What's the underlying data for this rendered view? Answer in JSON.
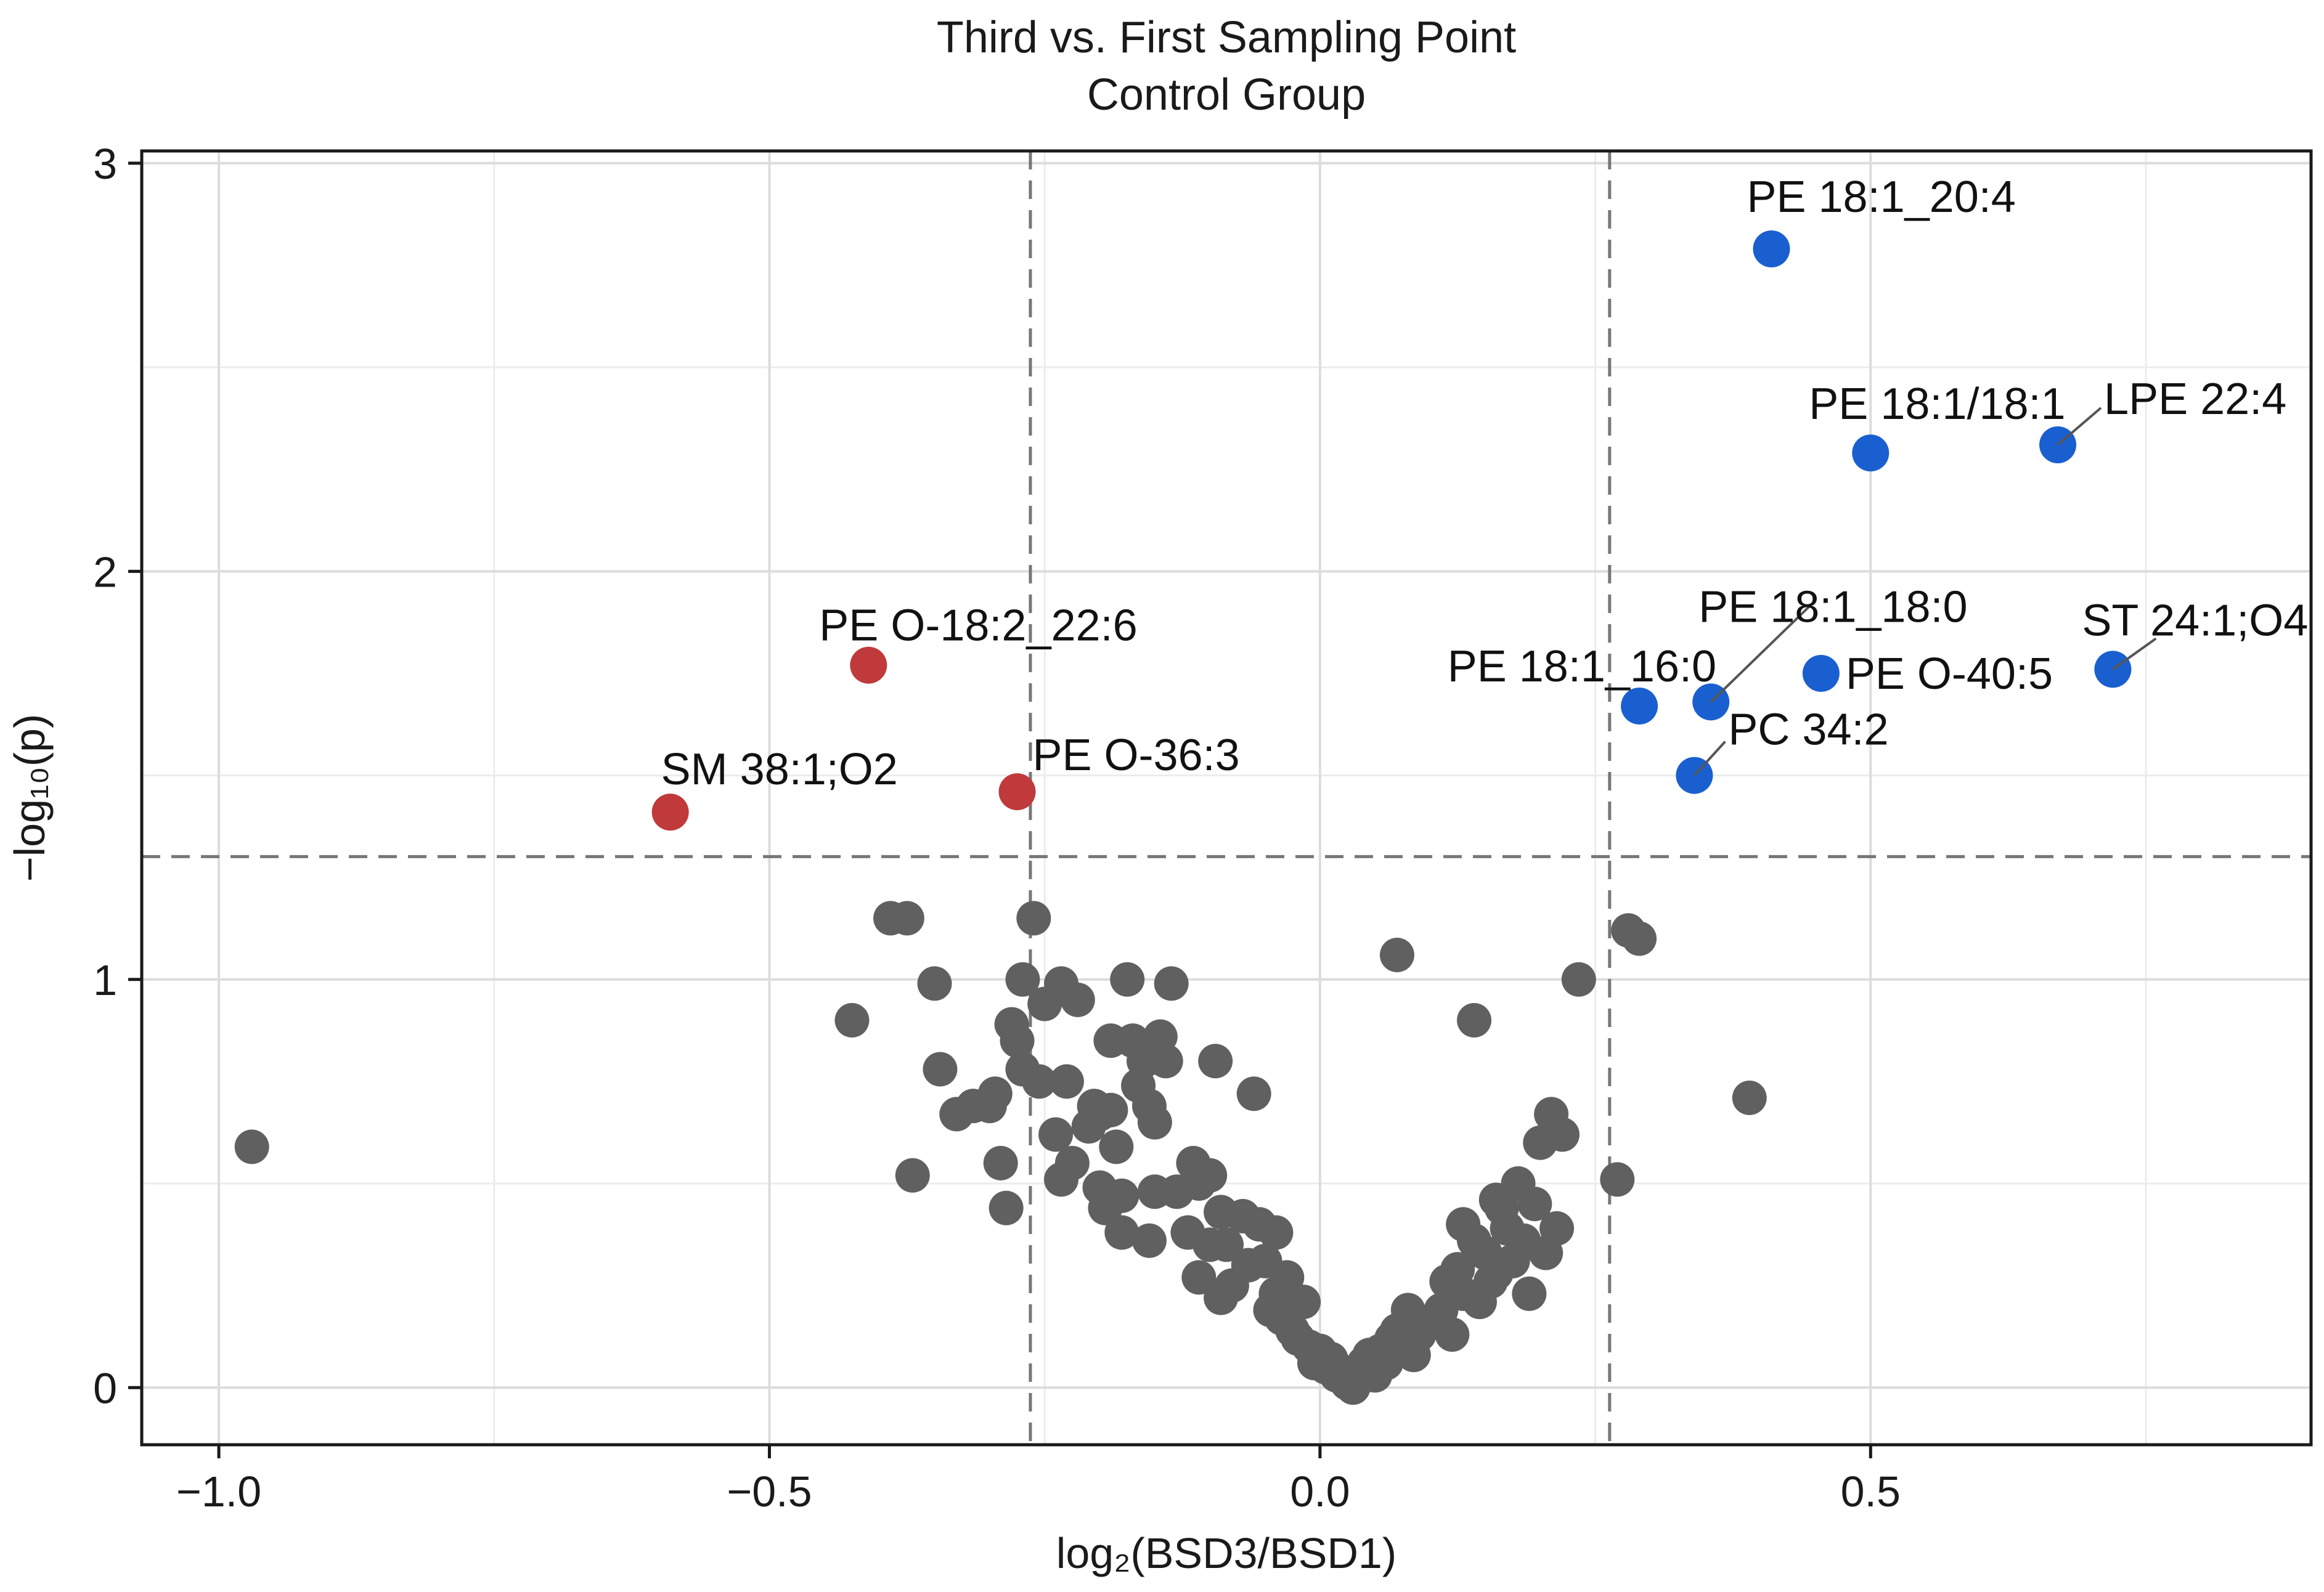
{
  "chart_data": {
    "type": "scatter",
    "title": "Third vs. First Sampling Point",
    "subtitle": "Control Group",
    "xlabel": "log₂(BSD3/BSD1)",
    "ylabel": "−log₁₀(p)",
    "xlim": [
      -1.07,
      0.9
    ],
    "ylim": [
      -0.14,
      3.03
    ],
    "xticks": [
      -1.0,
      -0.5,
      0.0,
      0.5
    ],
    "xtick_labels": [
      "−1.0",
      "−0.5",
      "0.0",
      "0.5"
    ],
    "yticks": [
      0,
      1,
      2,
      3
    ],
    "ytick_labels": [
      "0",
      "1",
      "2",
      "3"
    ],
    "grid": true,
    "thresholds": {
      "x": [
        -0.263,
        0.263
      ],
      "y": 1.301
    },
    "colors": {
      "down": "#c0393b",
      "up": "#1a5fd0",
      "ns": "#606060"
    },
    "labeled_points": [
      {
        "name": "PE 18:1_20:4",
        "x": 0.41,
        "y": 2.79,
        "group": "up"
      },
      {
        "name": "PE 18:1/18:1",
        "x": 0.5,
        "y": 2.29,
        "group": "up"
      },
      {
        "name": "LPE 22:4",
        "x": 0.67,
        "y": 2.31,
        "group": "up"
      },
      {
        "name": "ST 24:1;O4",
        "x": 0.72,
        "y": 1.76,
        "group": "up"
      },
      {
        "name": "PE O-40:5",
        "x": 0.455,
        "y": 1.75,
        "group": "up"
      },
      {
        "name": "PE 18:1_18:0",
        "x": 0.355,
        "y": 1.68,
        "group": "up"
      },
      {
        "name": "PE 18:1_16:0",
        "x": 0.29,
        "y": 1.67,
        "group": "up"
      },
      {
        "name": "PC 34:2",
        "x": 0.34,
        "y": 1.5,
        "group": "up"
      },
      {
        "name": "PE O-18:2_22:6",
        "x": -0.41,
        "y": 1.77,
        "group": "down"
      },
      {
        "name": "PE O-36:3",
        "x": -0.275,
        "y": 1.46,
        "group": "down"
      },
      {
        "name": "SM 38:1;O2",
        "x": -0.59,
        "y": 1.41,
        "group": "down"
      }
    ],
    "ns_points": [
      [
        -0.97,
        0.59
      ],
      [
        -0.39,
        1.15
      ],
      [
        -0.375,
        1.15
      ],
      [
        -0.425,
        0.9
      ],
      [
        -0.37,
        0.52
      ],
      [
        -0.35,
        0.99
      ],
      [
        -0.345,
        0.78
      ],
      [
        -0.33,
        0.67
      ],
      [
        -0.315,
        0.69
      ],
      [
        -0.3,
        0.69
      ],
      [
        -0.295,
        0.72
      ],
      [
        -0.29,
        0.55
      ],
      [
        -0.285,
        0.44
      ],
      [
        -0.28,
        0.89
      ],
      [
        -0.27,
        1.0
      ],
      [
        -0.26,
        1.15
      ],
      [
        -0.275,
        0.85
      ],
      [
        -0.27,
        0.78
      ],
      [
        -0.255,
        0.75
      ],
      [
        -0.25,
        0.94
      ],
      [
        -0.24,
        0.62
      ],
      [
        -0.235,
        0.99
      ],
      [
        -0.23,
        0.75
      ],
      [
        -0.235,
        0.51
      ],
      [
        -0.225,
        0.55
      ],
      [
        -0.22,
        0.95
      ],
      [
        -0.21,
        0.64
      ],
      [
        -0.205,
        0.69
      ],
      [
        -0.2,
        0.67
      ],
      [
        -0.2,
        0.49
      ],
      [
        -0.195,
        0.44
      ],
      [
        -0.19,
        0.85
      ],
      [
        -0.19,
        0.68
      ],
      [
        -0.185,
        0.59
      ],
      [
        -0.18,
        0.47
      ],
      [
        -0.18,
        0.38
      ],
      [
        -0.175,
        1.0
      ],
      [
        -0.17,
        0.85
      ],
      [
        -0.165,
        0.74
      ],
      [
        -0.16,
        0.8
      ],
      [
        -0.155,
        0.69
      ],
      [
        -0.15,
        0.48
      ],
      [
        -0.155,
        0.36
      ],
      [
        -0.15,
        0.65
      ],
      [
        -0.145,
        0.86
      ],
      [
        -0.14,
        0.8
      ],
      [
        -0.135,
        0.99
      ],
      [
        -0.13,
        0.48
      ],
      [
        -0.12,
        0.38
      ],
      [
        -0.115,
        0.55
      ],
      [
        -0.11,
        0.5
      ],
      [
        -0.11,
        0.27
      ],
      [
        -0.1,
        0.52
      ],
      [
        -0.1,
        0.35
      ],
      [
        -0.095,
        0.8
      ],
      [
        -0.09,
        0.43
      ],
      [
        -0.09,
        0.22
      ],
      [
        -0.085,
        0.35
      ],
      [
        -0.08,
        0.25
      ],
      [
        -0.07,
        0.42
      ],
      [
        -0.065,
        0.3
      ],
      [
        -0.06,
        0.72
      ],
      [
        -0.055,
        0.4
      ],
      [
        -0.05,
        0.31
      ],
      [
        -0.045,
        0.19
      ],
      [
        -0.04,
        0.38
      ],
      [
        -0.04,
        0.23
      ],
      [
        -0.035,
        0.17
      ],
      [
        -0.03,
        0.27
      ],
      [
        -0.025,
        0.14
      ],
      [
        -0.02,
        0.12
      ],
      [
        -0.015,
        0.21
      ],
      [
        -0.01,
        0.1
      ],
      [
        -0.005,
        0.06
      ],
      [
        0.0,
        0.09
      ],
      [
        0.005,
        0.05
      ],
      [
        0.01,
        0.07
      ],
      [
        0.015,
        0.03
      ],
      [
        0.02,
        0.04
      ],
      [
        0.025,
        0.01
      ],
      [
        0.03,
        0.0
      ],
      [
        0.035,
        0.02
      ],
      [
        0.04,
        0.06
      ],
      [
        0.045,
        0.08
      ],
      [
        0.05,
        0.03
      ],
      [
        0.055,
        0.09
      ],
      [
        0.06,
        0.06
      ],
      [
        0.065,
        0.12
      ],
      [
        0.07,
        0.14
      ],
      [
        0.075,
        0.11
      ],
      [
        0.08,
        0.19
      ],
      [
        0.085,
        0.08
      ],
      [
        0.09,
        0.13
      ],
      [
        0.1,
        0.16
      ],
      [
        0.11,
        0.19
      ],
      [
        0.115,
        0.26
      ],
      [
        0.12,
        0.13
      ],
      [
        0.125,
        0.29
      ],
      [
        0.13,
        0.4
      ],
      [
        0.13,
        0.23
      ],
      [
        0.14,
        0.36
      ],
      [
        0.145,
        0.21
      ],
      [
        0.15,
        0.33
      ],
      [
        0.155,
        0.26
      ],
      [
        0.16,
        0.46
      ],
      [
        0.16,
        0.28
      ],
      [
        0.165,
        0.44
      ],
      [
        0.17,
        0.39
      ],
      [
        0.175,
        0.31
      ],
      [
        0.18,
        0.5
      ],
      [
        0.185,
        0.36
      ],
      [
        0.19,
        0.23
      ],
      [
        0.195,
        0.45
      ],
      [
        0.2,
        0.6
      ],
      [
        0.205,
        0.33
      ],
      [
        0.21,
        0.67
      ],
      [
        0.215,
        0.39
      ],
      [
        0.22,
        0.62
      ],
      [
        0.235,
        1.0
      ],
      [
        0.27,
        0.51
      ],
      [
        0.28,
        1.12
      ],
      [
        0.29,
        1.1
      ],
      [
        0.07,
        1.06
      ],
      [
        0.14,
        0.9
      ],
      [
        0.39,
        0.71
      ]
    ]
  }
}
